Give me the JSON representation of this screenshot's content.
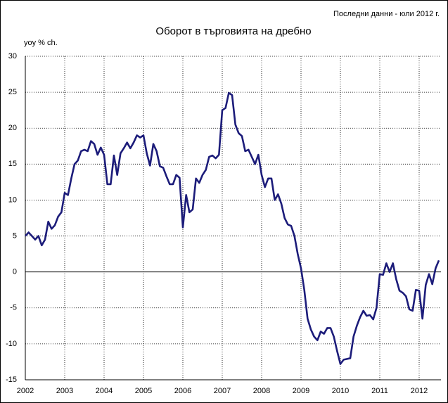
{
  "chart_data": {
    "type": "line",
    "title": "Оборот в търговията на дребно",
    "subtitle": "Последни данни - юли 2012 г.",
    "ylabel": "yoy % ch.",
    "color": "#1c1c7a",
    "grid": true,
    "ylim": [
      -15,
      30
    ],
    "yticks": [
      -15,
      -10,
      -5,
      0,
      5,
      10,
      15,
      20,
      25,
      30
    ],
    "categories": [
      "2002",
      null,
      null,
      null,
      null,
      null,
      null,
      null,
      null,
      null,
      null,
      null,
      "2003",
      null,
      null,
      null,
      null,
      null,
      null,
      null,
      null,
      null,
      null,
      null,
      "2004",
      null,
      null,
      null,
      null,
      null,
      null,
      null,
      null,
      null,
      null,
      null,
      "2005",
      null,
      null,
      null,
      null,
      null,
      null,
      null,
      null,
      null,
      null,
      null,
      "2006",
      null,
      null,
      null,
      null,
      null,
      null,
      null,
      null,
      null,
      null,
      null,
      "2007",
      null,
      null,
      null,
      null,
      null,
      null,
      null,
      null,
      null,
      null,
      null,
      "2008",
      null,
      null,
      null,
      null,
      null,
      null,
      null,
      null,
      null,
      null,
      null,
      "2009",
      null,
      null,
      null,
      null,
      null,
      null,
      null,
      null,
      null,
      null,
      null,
      "2010",
      null,
      null,
      null,
      null,
      null,
      null,
      null,
      null,
      null,
      null,
      null,
      "2011",
      null,
      null,
      null,
      null,
      null,
      null,
      null,
      null,
      null,
      null,
      null,
      "2012",
      null,
      null,
      null,
      null,
      null,
      null
    ],
    "values": [
      5.0,
      5.5,
      5.0,
      4.5,
      5.0,
      3.7,
      4.5,
      7.0,
      6.0,
      6.5,
      7.7,
      8.3,
      11.0,
      10.7,
      13.0,
      15.0,
      15.5,
      16.8,
      17.0,
      16.8,
      18.2,
      17.8,
      16.3,
      17.3,
      16.3,
      12.2,
      12.2,
      16.2,
      13.5,
      16.5,
      17.2,
      18.0,
      17.2,
      18.0,
      19.0,
      18.7,
      19.0,
      16.5,
      14.8,
      17.8,
      16.8,
      14.7,
      14.5,
      13.3,
      12.2,
      12.2,
      13.5,
      13.1,
      6.2,
      10.7,
      8.3,
      8.7,
      13.0,
      12.4,
      13.5,
      14.2,
      16.0,
      16.2,
      15.8,
      16.3,
      22.5,
      22.8,
      24.9,
      24.6,
      20.5,
      19.3,
      18.9,
      16.8,
      17.0,
      16.0,
      15.0,
      16.3,
      13.5,
      11.8,
      13.0,
      13.0,
      10.0,
      10.8,
      9.5,
      7.5,
      6.6,
      6.4,
      5.0,
      2.5,
      0.5,
      -2.5,
      -6.5,
      -8.0,
      -9.0,
      -9.5,
      -8.3,
      -8.6,
      -7.8,
      -7.8,
      -9.0,
      -11.0,
      -12.8,
      -12.2,
      -12.1,
      -12.0,
      -9.0,
      -7.5,
      -6.3,
      -5.4,
      -6.1,
      -6.0,
      -6.6,
      -5.0,
      -0.3,
      -0.4,
      1.2,
      0.0,
      1.2,
      -1.0,
      -2.6,
      -2.9,
      -3.4,
      -5.2,
      -5.4,
      -2.5,
      -2.6,
      -6.5,
      -1.8,
      -0.3,
      -1.7,
      0.5,
      1.6
    ]
  }
}
